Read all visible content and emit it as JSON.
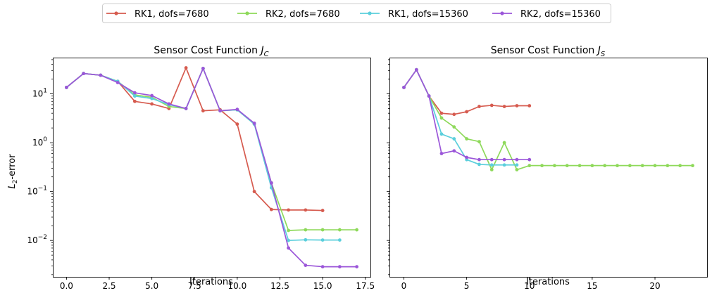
{
  "legend": {
    "placement": "top-center",
    "items": [
      {
        "label": "RK1, dofs=7680",
        "color": "#d65b4f"
      },
      {
        "label": "RK2, dofs=7680",
        "color": "#8ed95a"
      },
      {
        "label": "RK1, dofs=15360",
        "color": "#5bcfdc"
      },
      {
        "label": "RK2, dofs=15360",
        "color": "#9b56d9"
      }
    ]
  },
  "chart_data": [
    {
      "type": "line",
      "title": "Sensor Cost Function J_C",
      "title_text": "Sensor Cost Function ",
      "title_math": "J",
      "title_sub": "C",
      "xlabel": "Iterations",
      "ylabel_math": "L",
      "ylabel_sub": "2",
      "ylabel_text": "-error",
      "yscale": "log",
      "xlim": [
        -0.8,
        17.8
      ],
      "ylim": [
        0.0018,
        55
      ],
      "xticks": [
        0.0,
        2.5,
        5.0,
        7.5,
        10.0,
        12.5,
        15.0,
        17.5
      ],
      "xtick_labels": [
        "0.0",
        "2.5",
        "5.0",
        "7.5",
        "10.0",
        "12.5",
        "15.0",
        "17.5"
      ],
      "ytick_labels": [
        {
          "base": "10",
          "exp": "−2"
        },
        {
          "base": "10",
          "exp": "−1"
        },
        {
          "base": "10",
          "exp": "0"
        },
        {
          "base": "10",
          "exp": "1"
        }
      ],
      "grid": false,
      "series": [
        {
          "name": "RK1, dofs=7680",
          "color": "#d65b4f",
          "x": [
            0,
            1,
            2,
            3,
            4,
            5,
            6,
            7,
            8,
            9,
            10,
            11,
            12,
            13,
            14,
            15
          ],
          "y": [
            13.5,
            26,
            24,
            18,
            7,
            6.2,
            5,
            34,
            4.5,
            4.7,
            2.4,
            0.1,
            0.043,
            0.042,
            0.042,
            0.041
          ]
        },
        {
          "name": "RK2, dofs=7680",
          "color": "#8ed95a",
          "x": [
            0,
            1,
            2,
            3,
            4,
            5,
            6,
            7,
            8,
            9,
            10,
            11,
            12,
            13,
            14,
            15,
            16,
            17
          ],
          "y": [
            13.5,
            26,
            24,
            18,
            9.5,
            8.5,
            5.5,
            5,
            33,
            4.5,
            4.7,
            2.4,
            0.15,
            0.016,
            0.0165,
            0.0165,
            0.0165,
            0.0165
          ]
        },
        {
          "name": "RK1, dofs=15360",
          "color": "#5bcfdc",
          "x": [
            0,
            1,
            2,
            3,
            4,
            5,
            6,
            7,
            8,
            9,
            10,
            11,
            12,
            13,
            14,
            15,
            16
          ],
          "y": [
            13.5,
            26,
            24,
            18,
            9,
            8,
            6,
            5,
            33,
            4.5,
            4.7,
            2.4,
            0.12,
            0.01,
            0.0103,
            0.0102,
            0.0102
          ]
        },
        {
          "name": "RK2, dofs=15360",
          "color": "#9b56d9",
          "x": [
            0,
            1,
            2,
            3,
            4,
            5,
            6,
            7,
            8,
            9,
            10,
            11,
            12,
            13,
            14,
            15,
            16,
            17
          ],
          "y": [
            13.5,
            26,
            24,
            17,
            10.5,
            9.2,
            6.2,
            5,
            33,
            4.5,
            4.8,
            2.5,
            0.15,
            0.007,
            0.0031,
            0.0029,
            0.0029,
            0.0029
          ]
        }
      ]
    },
    {
      "type": "line",
      "title": "Sensor Cost Function J_S",
      "title_text": "Sensor Cost Function ",
      "title_math": "J",
      "title_sub": "S",
      "xlabel": "Iterations",
      "yscale": "log",
      "sharey": true,
      "xlim": [
        -1.15,
        24.15
      ],
      "ylim": [
        0.0018,
        55
      ],
      "xticks": [
        0,
        5,
        10,
        15,
        20
      ],
      "xtick_labels": [
        "0",
        "5",
        "10",
        "15",
        "20"
      ],
      "grid": false,
      "series": [
        {
          "name": "RK1, dofs=7680",
          "color": "#d65b4f",
          "x": [
            0,
            1,
            2,
            3,
            4,
            5,
            6,
            7,
            8,
            9,
            10
          ],
          "y": [
            13.5,
            31,
            9,
            4,
            3.8,
            4.3,
            5.5,
            5.8,
            5.5,
            5.7,
            5.7
          ]
        },
        {
          "name": "RK2, dofs=7680",
          "color": "#8ed95a",
          "x": [
            0,
            1,
            2,
            3,
            4,
            5,
            6,
            7,
            8,
            9,
            10,
            11,
            12,
            13,
            14,
            15,
            16,
            17,
            18,
            19,
            20,
            21,
            22,
            23
          ],
          "y": [
            13.5,
            31,
            9,
            3.2,
            2.1,
            1.2,
            1.05,
            0.28,
            1.0,
            0.28,
            0.34,
            0.34,
            0.34,
            0.34,
            0.34,
            0.34,
            0.34,
            0.34,
            0.34,
            0.34,
            0.34,
            0.34,
            0.34,
            0.34
          ]
        },
        {
          "name": "RK1, dofs=15360",
          "color": "#5bcfdc",
          "x": [
            0,
            1,
            2,
            3,
            4,
            5,
            6,
            7,
            8,
            9
          ],
          "y": [
            13.5,
            31,
            9,
            1.5,
            1.2,
            0.45,
            0.36,
            0.35,
            0.35,
            0.35
          ]
        },
        {
          "name": "RK2, dofs=15360",
          "color": "#9b56d9",
          "x": [
            0,
            1,
            2,
            3,
            4,
            5,
            6,
            7,
            8,
            9,
            10
          ],
          "y": [
            13.5,
            31,
            9,
            0.6,
            0.68,
            0.5,
            0.45,
            0.45,
            0.45,
            0.45,
            0.45
          ]
        }
      ]
    }
  ]
}
